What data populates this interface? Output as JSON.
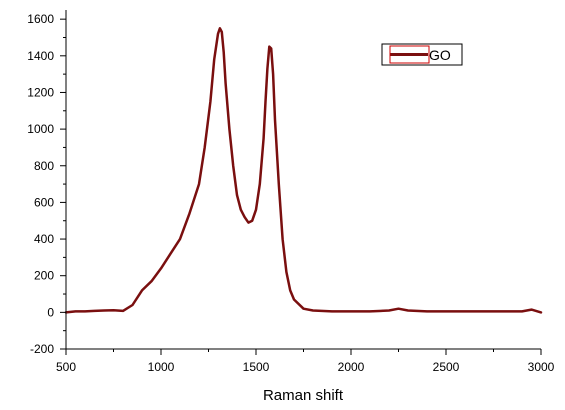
{
  "chart_data": {
    "type": "line",
    "title": "",
    "xlabel": "Raman shift",
    "ylabel": "",
    "xlim": [
      500,
      3000
    ],
    "ylim": [
      -200,
      1650
    ],
    "x_ticks": [
      500,
      1000,
      1500,
      2000,
      2500,
      3000
    ],
    "y_ticks": [
      -200,
      0,
      200,
      400,
      600,
      800,
      1000,
      1200,
      1400,
      1600
    ],
    "grid": false,
    "legend_position": "top-right",
    "series": [
      {
        "name": "GO",
        "color": "#7a0f0f",
        "x": [
          500,
          550,
          600,
          650,
          700,
          750,
          800,
          850,
          900,
          950,
          1000,
          1050,
          1100,
          1150,
          1200,
          1230,
          1260,
          1280,
          1300,
          1310,
          1320,
          1330,
          1340,
          1360,
          1380,
          1400,
          1420,
          1440,
          1460,
          1480,
          1500,
          1520,
          1540,
          1550,
          1560,
          1570,
          1580,
          1590,
          1600,
          1620,
          1640,
          1660,
          1680,
          1700,
          1750,
          1800,
          1900,
          2000,
          2100,
          2200,
          2250,
          2300,
          2400,
          2500,
          2600,
          2700,
          2800,
          2900,
          2950,
          3000
        ],
        "y": [
          0,
          5,
          5,
          8,
          10,
          12,
          8,
          40,
          120,
          170,
          240,
          320,
          400,
          540,
          700,
          900,
          1150,
          1380,
          1520,
          1550,
          1530,
          1420,
          1250,
          1000,
          800,
          640,
          560,
          520,
          490,
          500,
          560,
          700,
          950,
          1150,
          1330,
          1450,
          1440,
          1300,
          1050,
          700,
          400,
          220,
          120,
          70,
          20,
          10,
          5,
          5,
          5,
          10,
          20,
          10,
          5,
          5,
          5,
          5,
          5,
          5,
          15,
          0
        ]
      }
    ]
  }
}
